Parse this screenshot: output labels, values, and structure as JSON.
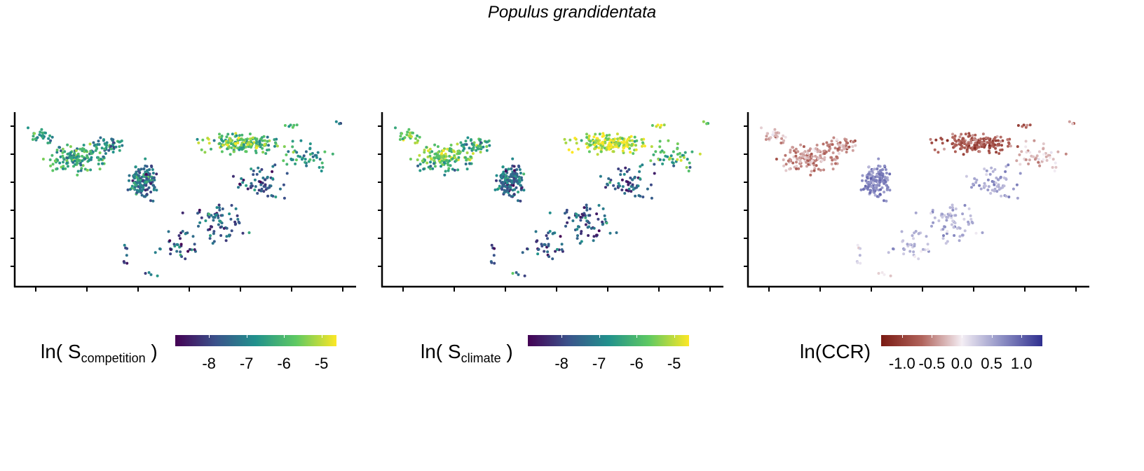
{
  "title": "Populus grandidentata",
  "chart_data": [
    {
      "type": "scatter",
      "legend": {
        "prefix": "ln( S",
        "subscript": "competition",
        "suffix": " )"
      },
      "color_scale": [
        "#440154",
        "#3b528b",
        "#21918c",
        "#5ec962",
        "#fde725"
      ],
      "color_range": [
        -8.9,
        -4.6
      ],
      "colorbar_ticks": [
        "-8",
        "-7",
        "-6",
        "-5"
      ],
      "colorbar_tick_values": [
        -8,
        -7,
        -6,
        -5
      ]
    },
    {
      "type": "scatter",
      "legend": {
        "prefix": "ln( S",
        "subscript": "climate",
        "suffix": " )"
      },
      "color_scale": [
        "#440154",
        "#3b528b",
        "#21918c",
        "#5ec962",
        "#fde725"
      ],
      "color_range": [
        -8.9,
        -4.6
      ],
      "colorbar_ticks": [
        "-8",
        "-7",
        "-6",
        "-5"
      ],
      "colorbar_tick_values": [
        -8,
        -7,
        -6,
        -5
      ]
    },
    {
      "type": "scatter",
      "legend": {
        "prefix": "ln(CCR)",
        "subscript": "",
        "suffix": ""
      },
      "color_scale": [
        "#7a1a12",
        "#b0625a",
        "#f4eef4",
        "#8d8fc4",
        "#2f2f8f"
      ],
      "color_range": [
        -1.35,
        1.35
      ],
      "colorbar_ticks": [
        "-1.0",
        "-0.5",
        "0.0",
        "0.5",
        "1.0"
      ],
      "colorbar_tick_values": [
        -1.0,
        -0.5,
        0.0,
        0.5,
        1.0
      ]
    }
  ]
}
